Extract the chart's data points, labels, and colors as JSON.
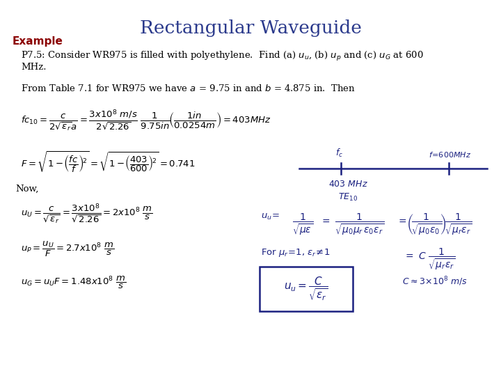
{
  "title": "Rectangular Waveguide",
  "title_color": "#2B3A8C",
  "title_fontsize": 19,
  "background_color": "#ffffff",
  "example_label": "Example",
  "example_color": "#8B0000",
  "example_fontsize": 11,
  "body_color": "#000000",
  "hw_color": "#1a2080",
  "body_fontsize": 10,
  "formula_fontsize": 10
}
